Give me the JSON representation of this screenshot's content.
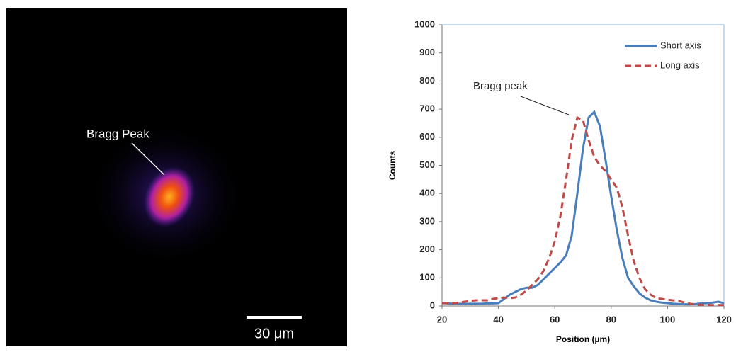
{
  "image": {
    "annotation": "Bragg Peak",
    "scale_bar": "30 μm"
  },
  "chart_data": {
    "type": "line",
    "annotation": "Bragg peak",
    "x_label": "Position (µm)",
    "y_label": "Counts",
    "xlim": [
      20,
      120
    ],
    "xticks": [
      20,
      40,
      60,
      80,
      100,
      120
    ],
    "ylim": [
      0,
      1000
    ],
    "yticks": [
      0,
      100,
      200,
      300,
      400,
      500,
      600,
      700,
      800,
      900,
      1000
    ],
    "grid": false,
    "legend": "top-right",
    "x": [
      20,
      22,
      24,
      26,
      28,
      30,
      32,
      34,
      36,
      38,
      40,
      42,
      44,
      46,
      48,
      50,
      52,
      54,
      56,
      58,
      60,
      62,
      64,
      66,
      68,
      70,
      72,
      74,
      76,
      78,
      80,
      82,
      84,
      86,
      88,
      90,
      92,
      94,
      96,
      98,
      100,
      102,
      104,
      106,
      108,
      110,
      112,
      114,
      116,
      118,
      120
    ],
    "series": [
      {
        "name": "Short axis",
        "color": "#4a7ebb",
        "dash": false,
        "values": [
          10,
          9,
          8,
          8,
          8,
          8,
          8,
          8,
          9,
          9,
          10,
          25,
          40,
          50,
          60,
          65,
          65,
          75,
          95,
          115,
          135,
          155,
          180,
          250,
          400,
          560,
          670,
          690,
          640,
          520,
          390,
          270,
          170,
          100,
          70,
          45,
          30,
          20,
          15,
          12,
          10,
          8,
          7,
          6,
          6,
          7,
          9,
          10,
          12,
          15,
          10
        ]
      },
      {
        "name": "Long axis",
        "color": "#be4b48",
        "dash": true,
        "values": [
          10,
          10,
          10,
          12,
          15,
          18,
          20,
          20,
          20,
          25,
          28,
          30,
          28,
          30,
          40,
          55,
          75,
          95,
          125,
          170,
          230,
          320,
          450,
          590,
          670,
          660,
          590,
          530,
          500,
          480,
          450,
          420,
          350,
          250,
          160,
          100,
          60,
          40,
          28,
          25,
          22,
          20,
          18,
          12,
          8,
          5,
          4,
          4,
          3,
          3,
          3
        ]
      }
    ]
  }
}
